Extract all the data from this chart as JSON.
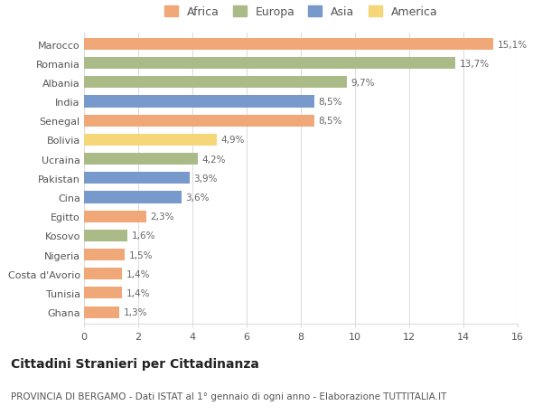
{
  "countries": [
    "Ghana",
    "Tunisia",
    "Costa d'Avorio",
    "Nigeria",
    "Kosovo",
    "Egitto",
    "Cina",
    "Pakistan",
    "Ucraina",
    "Bolivia",
    "Senegal",
    "India",
    "Albania",
    "Romania",
    "Marocco"
  ],
  "values": [
    1.3,
    1.4,
    1.4,
    1.5,
    1.6,
    2.3,
    3.6,
    3.9,
    4.2,
    4.9,
    8.5,
    8.5,
    9.7,
    13.7,
    15.1
  ],
  "labels": [
    "1,3%",
    "1,4%",
    "1,4%",
    "1,5%",
    "1,6%",
    "2,3%",
    "3,6%",
    "3,9%",
    "4,2%",
    "4,9%",
    "8,5%",
    "8,5%",
    "9,7%",
    "13,7%",
    "15,1%"
  ],
  "continents": [
    "Africa",
    "Africa",
    "Africa",
    "Africa",
    "Europa",
    "Africa",
    "Asia",
    "Asia",
    "Europa",
    "America",
    "Africa",
    "Asia",
    "Europa",
    "Europa",
    "Africa"
  ],
  "colors": {
    "Africa": "#F0A878",
    "Europa": "#AABB88",
    "Asia": "#7799CC",
    "America": "#F5D678"
  },
  "legend_order": [
    "Africa",
    "Europa",
    "Asia",
    "America"
  ],
  "title": "Cittadini Stranieri per Cittadinanza",
  "subtitle": "PROVINCIA DI BERGAMO - Dati ISTAT al 1° gennaio di ogni anno - Elaborazione TUTTITALIA.IT",
  "xlim": [
    0,
    16
  ],
  "xticks": [
    0,
    2,
    4,
    6,
    8,
    10,
    12,
    14,
    16
  ],
  "bg_color": "#FFFFFF",
  "grid_color": "#DDDDDD",
  "bar_height": 0.62,
  "title_fontsize": 10,
  "subtitle_fontsize": 7.5,
  "label_fontsize": 7.5,
  "tick_fontsize": 8,
  "legend_fontsize": 9
}
